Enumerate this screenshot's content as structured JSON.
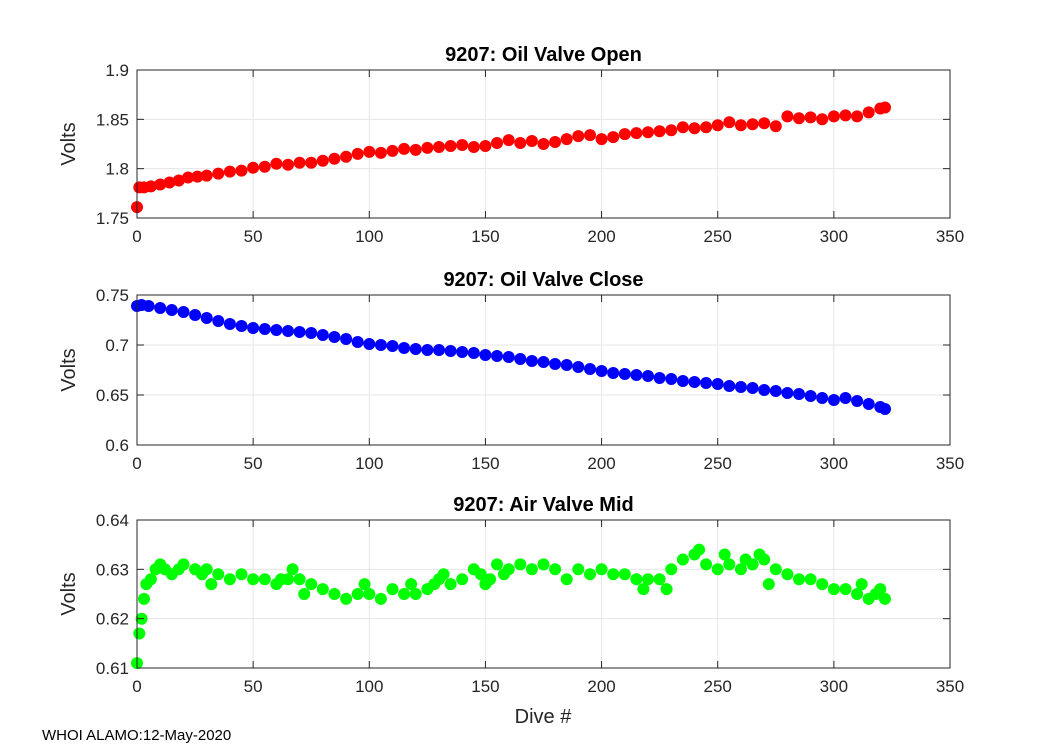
{
  "figure": {
    "footer": "WHOI ALAMO:12-May-2020",
    "xlabel": "Dive #"
  },
  "chart_data": [
    {
      "type": "scatter",
      "title": "9207: Oil Valve Open",
      "xlabel": "",
      "ylabel": "Volts",
      "xlim": [
        0,
        350
      ],
      "ylim": [
        1.75,
        1.9
      ],
      "xticks": [
        "0",
        "50",
        "100",
        "150",
        "200",
        "250",
        "300",
        "350"
      ],
      "yticks": [
        "1.75",
        "1.8",
        "1.85",
        "1.9"
      ],
      "grid": true,
      "color": "#ff0000",
      "series": [
        {
          "name": "Oil Valve Open",
          "points": [
            [
              0,
              1.761
            ],
            [
              1,
              1.781
            ],
            [
              3,
              1.781
            ],
            [
              6,
              1.782
            ],
            [
              10,
              1.784
            ],
            [
              14,
              1.786
            ],
            [
              18,
              1.788
            ],
            [
              22,
              1.791
            ],
            [
              26,
              1.792
            ],
            [
              30,
              1.793
            ],
            [
              35,
              1.795
            ],
            [
              40,
              1.797
            ],
            [
              45,
              1.798
            ],
            [
              50,
              1.801
            ],
            [
              55,
              1.802
            ],
            [
              60,
              1.805
            ],
            [
              65,
              1.804
            ],
            [
              70,
              1.806
            ],
            [
              75,
              1.806
            ],
            [
              80,
              1.808
            ],
            [
              85,
              1.81
            ],
            [
              90,
              1.812
            ],
            [
              95,
              1.815
            ],
            [
              100,
              1.817
            ],
            [
              105,
              1.816
            ],
            [
              110,
              1.818
            ],
            [
              115,
              1.82
            ],
            [
              120,
              1.819
            ],
            [
              125,
              1.821
            ],
            [
              130,
              1.822
            ],
            [
              135,
              1.823
            ],
            [
              140,
              1.824
            ],
            [
              145,
              1.822
            ],
            [
              150,
              1.823
            ],
            [
              155,
              1.826
            ],
            [
              160,
              1.829
            ],
            [
              165,
              1.826
            ],
            [
              170,
              1.828
            ],
            [
              175,
              1.825
            ],
            [
              180,
              1.827
            ],
            [
              185,
              1.83
            ],
            [
              190,
              1.833
            ],
            [
              195,
              1.834
            ],
            [
              200,
              1.83
            ],
            [
              205,
              1.832
            ],
            [
              210,
              1.835
            ],
            [
              215,
              1.836
            ],
            [
              220,
              1.837
            ],
            [
              225,
              1.838
            ],
            [
              230,
              1.839
            ],
            [
              235,
              1.842
            ],
            [
              240,
              1.841
            ],
            [
              245,
              1.842
            ],
            [
              250,
              1.844
            ],
            [
              255,
              1.847
            ],
            [
              260,
              1.844
            ],
            [
              265,
              1.845
            ],
            [
              270,
              1.846
            ],
            [
              275,
              1.843
            ],
            [
              280,
              1.853
            ],
            [
              285,
              1.851
            ],
            [
              290,
              1.852
            ],
            [
              295,
              1.85
            ],
            [
              300,
              1.853
            ],
            [
              305,
              1.854
            ],
            [
              310,
              1.853
            ],
            [
              315,
              1.857
            ],
            [
              320,
              1.861
            ],
            [
              322,
              1.862
            ]
          ]
        }
      ]
    },
    {
      "type": "scatter",
      "title": "9207: Oil Valve Close",
      "xlabel": "",
      "ylabel": "Volts",
      "xlim": [
        0,
        350
      ],
      "ylim": [
        0.6,
        0.75
      ],
      "xticks": [
        "0",
        "50",
        "100",
        "150",
        "200",
        "250",
        "300",
        "350"
      ],
      "yticks": [
        "0.6",
        "0.65",
        "0.7",
        "0.75"
      ],
      "grid": true,
      "color": "#0000ff",
      "series": [
        {
          "name": "Oil Valve Close",
          "points": [
            [
              0,
              0.739
            ],
            [
              2,
              0.74
            ],
            [
              5,
              0.739
            ],
            [
              10,
              0.737
            ],
            [
              15,
              0.735
            ],
            [
              20,
              0.733
            ],
            [
              25,
              0.73
            ],
            [
              30,
              0.727
            ],
            [
              35,
              0.724
            ],
            [
              40,
              0.721
            ],
            [
              45,
              0.719
            ],
            [
              50,
              0.717
            ],
            [
              55,
              0.716
            ],
            [
              60,
              0.715
            ],
            [
              65,
              0.714
            ],
            [
              70,
              0.713
            ],
            [
              75,
              0.712
            ],
            [
              80,
              0.71
            ],
            [
              85,
              0.708
            ],
            [
              90,
              0.706
            ],
            [
              95,
              0.703
            ],
            [
              100,
              0.701
            ],
            [
              105,
              0.7
            ],
            [
              110,
              0.699
            ],
            [
              115,
              0.697
            ],
            [
              120,
              0.696
            ],
            [
              125,
              0.695
            ],
            [
              130,
              0.695
            ],
            [
              135,
              0.694
            ],
            [
              140,
              0.693
            ],
            [
              145,
              0.692
            ],
            [
              150,
              0.69
            ],
            [
              155,
              0.689
            ],
            [
              160,
              0.688
            ],
            [
              165,
              0.686
            ],
            [
              170,
              0.684
            ],
            [
              175,
              0.683
            ],
            [
              180,
              0.681
            ],
            [
              185,
              0.68
            ],
            [
              190,
              0.678
            ],
            [
              195,
              0.676
            ],
            [
              200,
              0.674
            ],
            [
              205,
              0.672
            ],
            [
              210,
              0.671
            ],
            [
              215,
              0.67
            ],
            [
              220,
              0.669
            ],
            [
              225,
              0.667
            ],
            [
              230,
              0.666
            ],
            [
              235,
              0.664
            ],
            [
              240,
              0.663
            ],
            [
              245,
              0.662
            ],
            [
              250,
              0.661
            ],
            [
              255,
              0.659
            ],
            [
              260,
              0.658
            ],
            [
              265,
              0.657
            ],
            [
              270,
              0.655
            ],
            [
              275,
              0.654
            ],
            [
              280,
              0.652
            ],
            [
              285,
              0.651
            ],
            [
              290,
              0.649
            ],
            [
              295,
              0.647
            ],
            [
              300,
              0.645
            ],
            [
              305,
              0.647
            ],
            [
              310,
              0.644
            ],
            [
              315,
              0.641
            ],
            [
              320,
              0.638
            ],
            [
              322,
              0.636
            ]
          ]
        }
      ]
    },
    {
      "type": "scatter",
      "title": "9207: Air Valve Mid",
      "xlabel": "Dive #",
      "ylabel": "Volts",
      "xlim": [
        0,
        350
      ],
      "ylim": [
        0.61,
        0.64
      ],
      "xticks": [
        "0",
        "50",
        "100",
        "150",
        "200",
        "250",
        "300",
        "350"
      ],
      "yticks": [
        "0.61",
        "0.62",
        "0.63",
        "0.64"
      ],
      "grid": true,
      "color": "#00ff00",
      "series": [
        {
          "name": "Air Valve Mid",
          "points": [
            [
              0,
              0.611
            ],
            [
              1,
              0.617
            ],
            [
              2,
              0.62
            ],
            [
              3,
              0.624
            ],
            [
              4,
              0.627
            ],
            [
              6,
              0.628
            ],
            [
              8,
              0.63
            ],
            [
              10,
              0.631
            ],
            [
              12,
              0.63
            ],
            [
              15,
              0.629
            ],
            [
              18,
              0.63
            ],
            [
              20,
              0.631
            ],
            [
              25,
              0.63
            ],
            [
              28,
              0.629
            ],
            [
              30,
              0.63
            ],
            [
              32,
              0.627
            ],
            [
              35,
              0.629
            ],
            [
              40,
              0.628
            ],
            [
              45,
              0.629
            ],
            [
              50,
              0.628
            ],
            [
              55,
              0.628
            ],
            [
              60,
              0.627
            ],
            [
              62,
              0.628
            ],
            [
              65,
              0.628
            ],
            [
              67,
              0.63
            ],
            [
              70,
              0.628
            ],
            [
              72,
              0.625
            ],
            [
              75,
              0.627
            ],
            [
              80,
              0.626
            ],
            [
              85,
              0.625
            ],
            [
              90,
              0.624
            ],
            [
              95,
              0.625
            ],
            [
              98,
              0.627
            ],
            [
              100,
              0.625
            ],
            [
              105,
              0.624
            ],
            [
              110,
              0.626
            ],
            [
              115,
              0.625
            ],
            [
              118,
              0.627
            ],
            [
              120,
              0.625
            ],
            [
              125,
              0.626
            ],
            [
              128,
              0.627
            ],
            [
              130,
              0.628
            ],
            [
              132,
              0.629
            ],
            [
              135,
              0.627
            ],
            [
              140,
              0.628
            ],
            [
              145,
              0.63
            ],
            [
              148,
              0.629
            ],
            [
              150,
              0.627
            ],
            [
              152,
              0.628
            ],
            [
              155,
              0.631
            ],
            [
              158,
              0.629
            ],
            [
              160,
              0.63
            ],
            [
              165,
              0.631
            ],
            [
              170,
              0.63
            ],
            [
              175,
              0.631
            ],
            [
              180,
              0.63
            ],
            [
              185,
              0.628
            ],
            [
              190,
              0.63
            ],
            [
              195,
              0.629
            ],
            [
              200,
              0.63
            ],
            [
              205,
              0.629
            ],
            [
              210,
              0.629
            ],
            [
              215,
              0.628
            ],
            [
              218,
              0.626
            ],
            [
              220,
              0.628
            ],
            [
              225,
              0.628
            ],
            [
              228,
              0.626
            ],
            [
              230,
              0.63
            ],
            [
              235,
              0.632
            ],
            [
              240,
              0.633
            ],
            [
              242,
              0.634
            ],
            [
              245,
              0.631
            ],
            [
              250,
              0.63
            ],
            [
              253,
              0.633
            ],
            [
              255,
              0.631
            ],
            [
              260,
              0.63
            ],
            [
              262,
              0.632
            ],
            [
              265,
              0.631
            ],
            [
              268,
              0.633
            ],
            [
              270,
              0.632
            ],
            [
              272,
              0.627
            ],
            [
              275,
              0.63
            ],
            [
              280,
              0.629
            ],
            [
              285,
              0.628
            ],
            [
              290,
              0.628
            ],
            [
              295,
              0.627
            ],
            [
              300,
              0.626
            ],
            [
              305,
              0.626
            ],
            [
              310,
              0.625
            ],
            [
              312,
              0.627
            ],
            [
              315,
              0.624
            ],
            [
              318,
              0.625
            ],
            [
              320,
              0.626
            ],
            [
              322,
              0.624
            ]
          ]
        }
      ]
    }
  ]
}
